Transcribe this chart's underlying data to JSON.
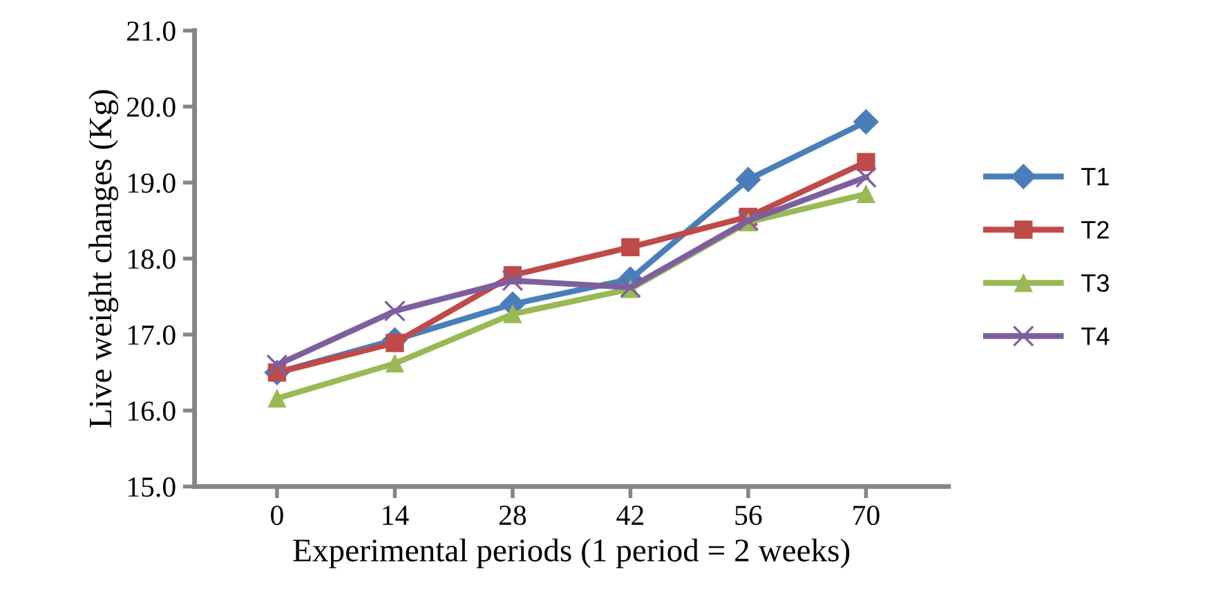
{
  "chart_data": {
    "type": "line",
    "xlabel": "Experimental periods (1 period = 2 weeks)",
    "ylabel": "Live weight changes (Kg)",
    "categories": [
      "0",
      "14",
      "28",
      "42",
      "56",
      "70"
    ],
    "ylim": [
      15.0,
      21.0
    ],
    "yticks": [
      {
        "value": 15,
        "label": "15.0"
      },
      {
        "value": 16,
        "label": "16.0"
      },
      {
        "value": 17,
        "label": "17.0"
      },
      {
        "value": 18,
        "label": "18.0"
      },
      {
        "value": 19,
        "label": "19.0"
      },
      {
        "value": 20,
        "label": "20.0"
      },
      {
        "value": 21,
        "label": "21.0"
      }
    ],
    "grid": false,
    "legend": "right",
    "line_style": "solid",
    "series": [
      {
        "name": "T1",
        "color": "#4a7ebb",
        "marker": "diamond",
        "values": [
          16.5,
          16.93,
          17.4,
          17.73,
          19.04,
          19.8
        ]
      },
      {
        "name": "T2",
        "color": "#be4b48",
        "marker": "square",
        "values": [
          16.5,
          16.89,
          17.78,
          18.15,
          18.55,
          19.27
        ]
      },
      {
        "name": "T3",
        "color": "#98b954",
        "marker": "triangle",
        "values": [
          16.16,
          16.62,
          17.27,
          17.6,
          18.48,
          18.85
        ]
      },
      {
        "name": "T4",
        "color": "#7d5fa0",
        "marker": "cross",
        "values": [
          16.6,
          17.31,
          17.71,
          17.62,
          18.5,
          19.07
        ]
      }
    ]
  }
}
